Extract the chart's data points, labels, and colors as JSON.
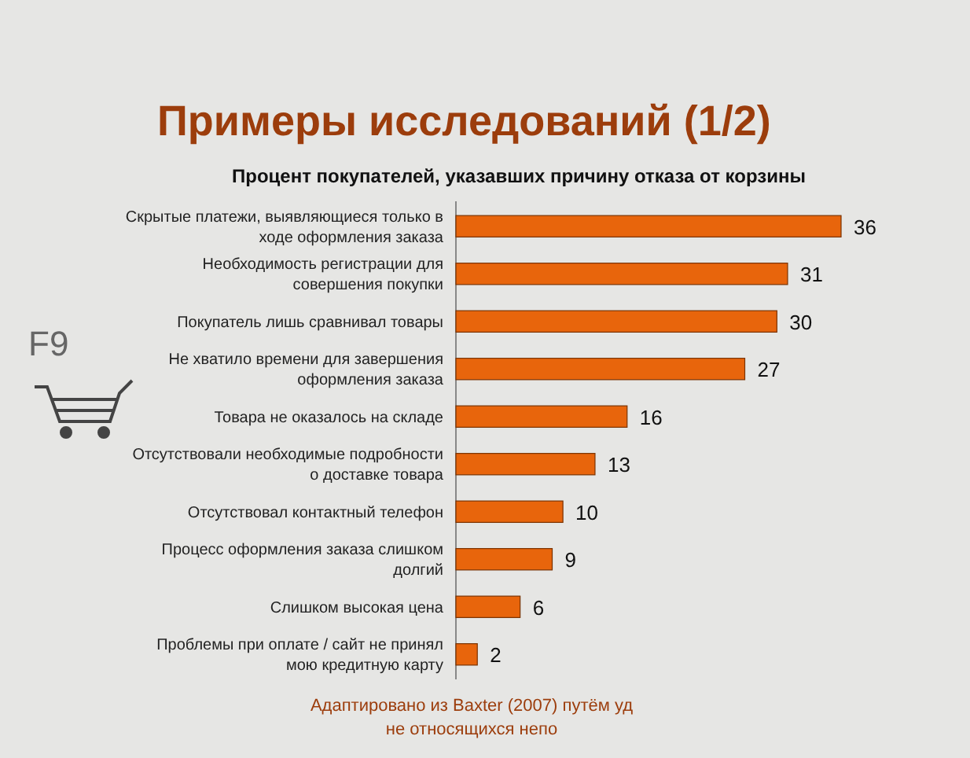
{
  "chart_data": {
    "type": "bar",
    "orientation": "horizontal",
    "title": "Примеры исследований (1/2)",
    "subtitle": "Процент покупателей, указавших причину отказа от корзины",
    "categories": [
      "Скрытые платежи, выявляющиеся только в ходе оформления заказа",
      "Необходимость регистрации для совершения покупки",
      "Покупатель лишь сравнивал товары",
      "Не хватило времени для завершения оформления заказа",
      "Товара не оказалось на складе",
      "Отсутствовали необходимые подробности о доставке товара",
      "Отсутствовал контактный телефон",
      "Процесс оформления заказа слишком долгий",
      "Слишком высокая цена",
      "Проблемы при оплате / сайт не принял мою кредитную карту"
    ],
    "values": [
      36,
      31,
      30,
      27,
      16,
      13,
      10,
      9,
      6,
      2
    ],
    "color": "#e8650c",
    "data_labels": true,
    "annotations": [
      "F9",
      "Адаптировано из Baxter (2007) путём уд",
      "не относящихся непо"
    ]
  }
}
